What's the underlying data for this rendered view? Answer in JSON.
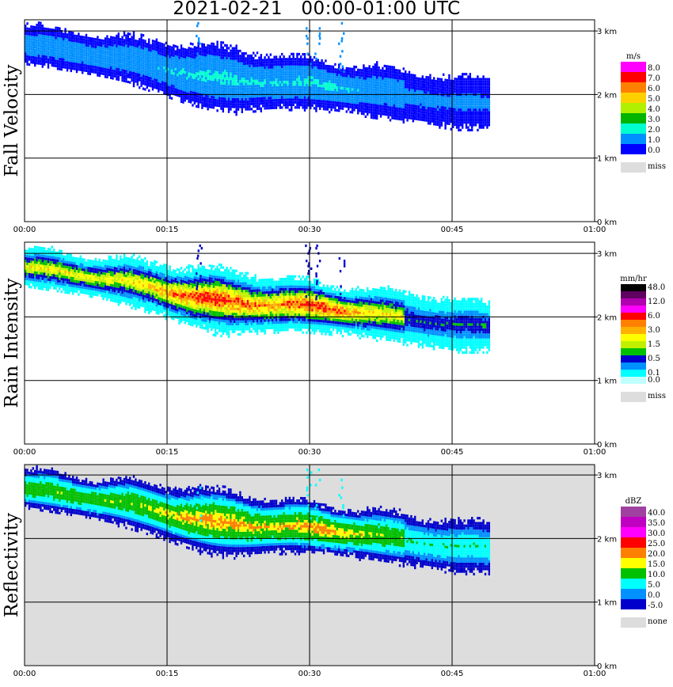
{
  "title": "2021-02-21   00:00-01:00 UTC",
  "x_ticks": [
    "00:00",
    "00:15",
    "00:30",
    "00:45",
    "01:00"
  ],
  "y_ticks": [
    "0 km",
    "1 km",
    "2 km",
    "3 km"
  ],
  "chart_data": [
    {
      "type": "heatmap",
      "ylabel": "Fall Velocity",
      "xlim": [
        "00:00",
        "01:00"
      ],
      "ylim_km": [
        0,
        3.2
      ],
      "legend": {
        "unit": "m/s",
        "labels": [
          "8.0",
          "7.0",
          "6.0",
          "5.0",
          "4.0",
          "3.0",
          "2.0",
          "1.0",
          "0.0"
        ],
        "colors": [
          "#ff00ff",
          "#ff0000",
          "#ff8000",
          "#ffd000",
          "#b0f000",
          "#00b400",
          "#00ffd0",
          "#0090ff",
          "#0000ff"
        ],
        "missing_label": "miss",
        "missing_color": "#dddddd"
      },
      "background": "#ffffff",
      "echo_extent": {
        "start": "00:00",
        "end": "00:49",
        "base_km": 1.4,
        "top_km": 3.1
      },
      "dominant_values": [
        "1.0-3.0 m/s"
      ]
    },
    {
      "type": "heatmap",
      "ylabel": "Rain Intensity",
      "xlim": [
        "00:00",
        "01:00"
      ],
      "ylim_km": [
        0,
        3.2
      ],
      "legend": {
        "unit": "mm/hr",
        "labels": [
          "48.0",
          "",
          "12.0",
          "",
          "6.0",
          "",
          "3.0",
          "",
          "1.5",
          "",
          "0.5",
          "",
          "0.1",
          "0.0"
        ],
        "colors": [
          "#000000",
          "#600060",
          "#b000b0",
          "#ff00ff",
          "#ff0000",
          "#ff8000",
          "#ffb000",
          "#ffff00",
          "#c0f000",
          "#00c000",
          "#0000cc",
          "#0090ff",
          "#00ffff",
          "#c0ffff"
        ],
        "missing_label": "miss",
        "missing_color": "#dddddd"
      },
      "background": "#ffffff",
      "echo_extent": {
        "start": "00:00",
        "end": "00:49",
        "base_km": 1.4,
        "top_km": 3.1
      },
      "max_value_mm_hr": 6.0
    },
    {
      "type": "heatmap",
      "ylabel": "Reflectivity",
      "xlim": [
        "00:00",
        "01:00"
      ],
      "ylim_km": [
        0,
        3.2
      ],
      "legend": {
        "unit": "dBZ",
        "labels": [
          "40.0",
          "35.0",
          "30.0",
          "25.0",
          "20.0",
          "15.0",
          "10.0",
          "5.0",
          "0.0",
          "-5.0"
        ],
        "colors": [
          "#a040a0",
          "#c000c0",
          "#ff00ff",
          "#ff0000",
          "#ff8000",
          "#ffff00",
          "#00c000",
          "#00ffff",
          "#0090ff",
          "#0000cc"
        ],
        "missing_label": "none",
        "missing_color": "#dddddd"
      },
      "background": "#dddddd",
      "echo_extent": {
        "start": "00:00",
        "end": "00:49",
        "base_km": 1.4,
        "top_km": 3.1
      },
      "max_value_dbz": 25.0
    }
  ]
}
